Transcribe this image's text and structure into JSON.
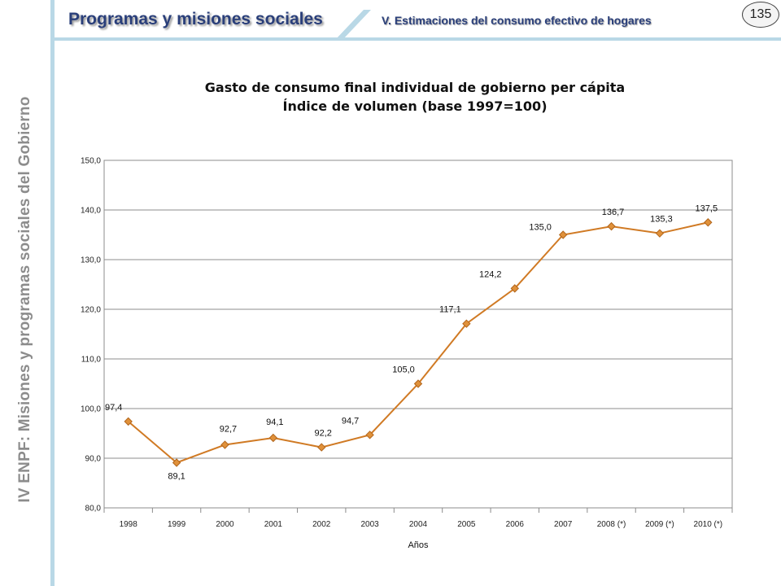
{
  "header": {
    "title": "Programas y misiones sociales",
    "subtitle": "V. Estimaciones del consumo efectivo de hogares",
    "page_number": "135"
  },
  "sidebar": {
    "vertical_title": "IV ENPF:  Misiones y programas sociales del Gobierno"
  },
  "colors": {
    "accent_bar": "#b9d8e6",
    "title_text": "#2a3f7a",
    "series_line": "#d07a24",
    "gridline": "#8c8c8c"
  },
  "chart_data": {
    "type": "line",
    "title_line1": "Gasto de consumo final individual de gobierno per cápita",
    "title_line2": "Índice de volumen (base 1997=100)",
    "xlabel": "Años",
    "ylabel": "",
    "categories": [
      "1998",
      "1999",
      "2000",
      "2001",
      "2002",
      "2003",
      "2004",
      "2005",
      "2006",
      "2007",
      "2008 (*)",
      "2009 (*)",
      "2010 (*)"
    ],
    "values": [
      97.4,
      89.1,
      92.7,
      94.1,
      92.2,
      94.7,
      105.0,
      117.1,
      124.2,
      135.0,
      136.7,
      135.3,
      137.5
    ],
    "value_labels": [
      "97,4",
      "89,1",
      "92,7",
      "94,1",
      "92,2",
      "94,7",
      "105,0",
      "117,1",
      "124,2",
      "135,0",
      "136,7",
      "135,3",
      "137,5"
    ],
    "ylim": [
      80,
      150
    ],
    "yticks": [
      80,
      90,
      100,
      110,
      120,
      130,
      140,
      150
    ],
    "ytick_labels": [
      "80,0",
      "90,0",
      "100,0",
      "110,0",
      "120,0",
      "130,0",
      "140,0",
      "150,0"
    ],
    "grid": true,
    "marker": "diamond"
  }
}
